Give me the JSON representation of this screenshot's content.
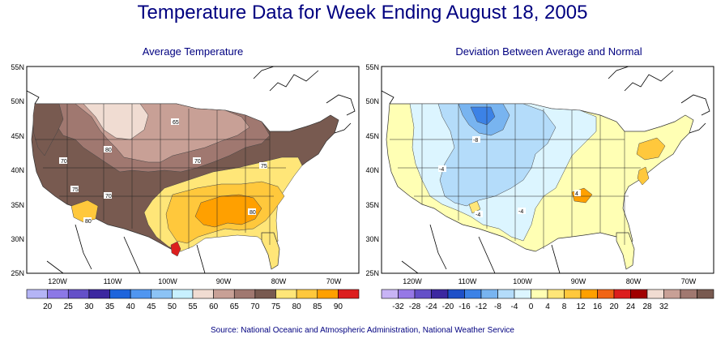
{
  "title": "Temperature Data for Week Ending August 18, 2005",
  "source": "Source:  National Oceanic and Atmospheric Administration, National Weather Service",
  "left_map": {
    "subtitle": "Average Temperature",
    "lat_labels": [
      "55N",
      "50N",
      "45N",
      "40N",
      "35N",
      "30N",
      "25N"
    ],
    "lon_labels": [
      "120W",
      "110W",
      "100W",
      "90W",
      "80W",
      "70W"
    ],
    "contour_labels": [
      "65",
      "80",
      "70",
      "70",
      "75",
      "75",
      "70",
      "80",
      "80"
    ],
    "legend": {
      "colors": [
        "#b4b4f5",
        "#8c78e6",
        "#6450c8",
        "#3c28a0",
        "#1e64dc",
        "#5096f0",
        "#8cc3f5",
        "#c8f0ff",
        "#f0dcd2",
        "#c8a096",
        "#a07870",
        "#785a50",
        "#ffe678",
        "#ffc83c",
        "#ffa000",
        "#dc1e1e"
      ],
      "labels": [
        "20",
        "25",
        "30",
        "35",
        "40",
        "45",
        "50",
        "55",
        "60",
        "65",
        "70",
        "75",
        "80",
        "85",
        "90"
      ]
    }
  },
  "right_map": {
    "subtitle": "Deviation Between Average and Normal",
    "lat_labels": [
      "55N",
      "50N",
      "45N",
      "40N",
      "35N",
      "30N",
      "25N"
    ],
    "lon_labels": [
      "120W",
      "110W",
      "100W",
      "90W",
      "80W",
      "70W"
    ],
    "contour_labels": [
      "-8",
      "-4",
      "-4",
      "-4",
      "4"
    ],
    "legend": {
      "colors": [
        "#c8b4f5",
        "#9678e6",
        "#6450c8",
        "#3c28a0",
        "#1e50c8",
        "#3c82e6",
        "#78b4f0",
        "#b4dcfa",
        "#dcf5ff",
        "#ffffb4",
        "#ffe678",
        "#ffc83c",
        "#ffa000",
        "#f06414",
        "#dc1e1e",
        "#a00000",
        "#f0dcd2",
        "#c8a096",
        "#a07870",
        "#785a50"
      ],
      "labels": [
        "-32",
        "-28",
        "-24",
        "-20",
        "-16",
        "-12",
        "-8",
        "-4",
        "0",
        "4",
        "8",
        "12",
        "16",
        "20",
        "24",
        "28",
        "32"
      ]
    }
  }
}
